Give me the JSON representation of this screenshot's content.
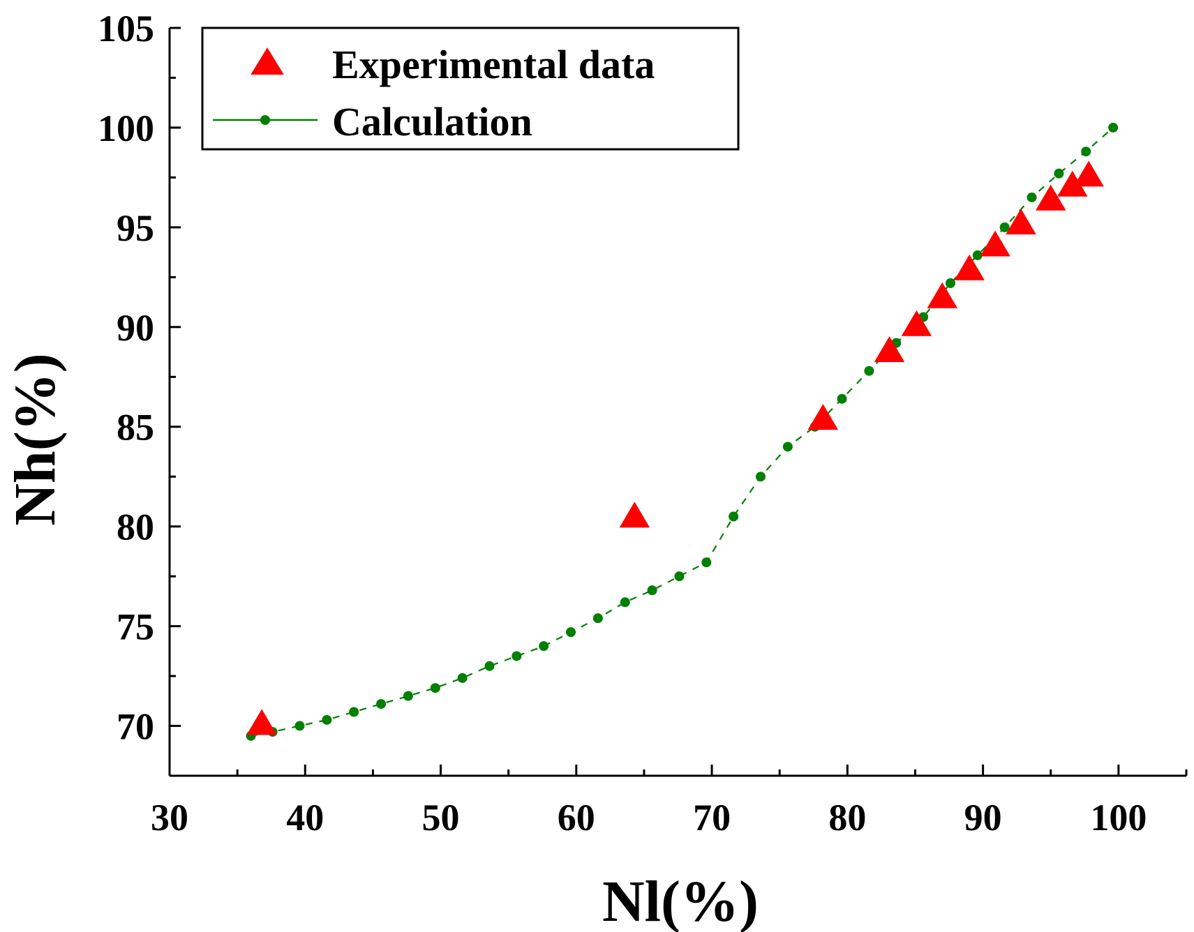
{
  "chart_data": {
    "type": "scatter",
    "title": "",
    "xlabel": "Nl(%)",
    "ylabel": "Nh(%)",
    "xlim": [
      30,
      105
    ],
    "ylim": [
      67.5,
      105
    ],
    "x_ticks": [
      "30",
      "40",
      "50",
      "60",
      "70",
      "80",
      "90",
      "100"
    ],
    "y_ticks": [
      "70",
      "75",
      "80",
      "85",
      "90",
      "95",
      "100",
      "105"
    ],
    "legend_position": "top-left",
    "series": [
      {
        "name": "Experimental data",
        "marker": "triangle",
        "color": "#ff0000",
        "points": [
          {
            "x": 36.8,
            "y": 70.0
          },
          {
            "x": 64.3,
            "y": 80.4
          },
          {
            "x": 78.2,
            "y": 85.3
          },
          {
            "x": 83.1,
            "y": 88.7
          },
          {
            "x": 85.1,
            "y": 90.0
          },
          {
            "x": 87.0,
            "y": 91.4
          },
          {
            "x": 89.0,
            "y": 92.8
          },
          {
            "x": 90.9,
            "y": 94.0
          },
          {
            "x": 92.8,
            "y": 95.1
          },
          {
            "x": 95.0,
            "y": 96.3
          },
          {
            "x": 96.6,
            "y": 97.0
          },
          {
            "x": 97.8,
            "y": 97.5
          }
        ]
      },
      {
        "name": "Calculation",
        "marker": "circle-line",
        "color": "#007f00",
        "points": [
          {
            "x": 36.0,
            "y": 69.5
          },
          {
            "x": 37.6,
            "y": 69.7
          },
          {
            "x": 39.6,
            "y": 70.0
          },
          {
            "x": 41.6,
            "y": 70.3
          },
          {
            "x": 43.6,
            "y": 70.7
          },
          {
            "x": 45.6,
            "y": 71.1
          },
          {
            "x": 47.6,
            "y": 71.5
          },
          {
            "x": 49.6,
            "y": 71.9
          },
          {
            "x": 51.6,
            "y": 72.4
          },
          {
            "x": 53.6,
            "y": 73.0
          },
          {
            "x": 55.6,
            "y": 73.5
          },
          {
            "x": 57.6,
            "y": 74.0
          },
          {
            "x": 59.6,
            "y": 74.7
          },
          {
            "x": 61.6,
            "y": 75.4
          },
          {
            "x": 63.6,
            "y": 76.2
          },
          {
            "x": 65.6,
            "y": 76.8
          },
          {
            "x": 67.6,
            "y": 77.5
          },
          {
            "x": 69.6,
            "y": 78.2
          },
          {
            "x": 71.6,
            "y": 80.5
          },
          {
            "x": 73.6,
            "y": 82.5
          },
          {
            "x": 75.6,
            "y": 84.0
          },
          {
            "x": 77.6,
            "y": 85.0
          },
          {
            "x": 79.6,
            "y": 86.4
          },
          {
            "x": 81.6,
            "y": 87.8
          },
          {
            "x": 83.6,
            "y": 89.2
          },
          {
            "x": 85.6,
            "y": 90.5
          },
          {
            "x": 87.6,
            "y": 92.2
          },
          {
            "x": 89.6,
            "y": 93.6
          },
          {
            "x": 91.6,
            "y": 95.0
          },
          {
            "x": 93.6,
            "y": 96.5
          },
          {
            "x": 95.6,
            "y": 97.7
          },
          {
            "x": 97.6,
            "y": 98.8
          },
          {
            "x": 99.6,
            "y": 100.0
          }
        ]
      }
    ]
  }
}
